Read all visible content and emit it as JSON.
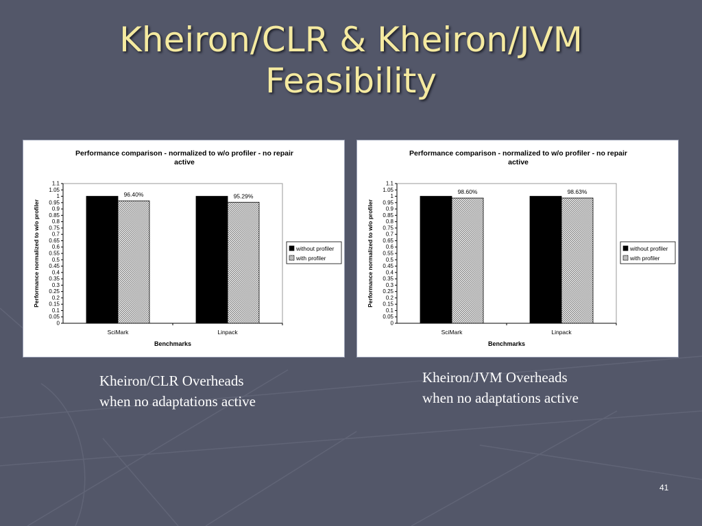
{
  "slide": {
    "title_line1": "Kheiron/CLR & Kheiron/JVM",
    "title_line2": "Feasibility",
    "page_number": "41"
  },
  "captions": {
    "left_line1": "Kheiron/CLR Overheads",
    "left_line2": "when no adaptations active",
    "right_line1": "Kheiron/JVM Overheads",
    "right_line2": "when no adaptations active"
  },
  "colors": {
    "background": "#535769",
    "title": "#f5eaa0",
    "series_without": "#000000",
    "series_with": "#d9d9d9"
  },
  "chart_data": [
    {
      "type": "bar",
      "title_line1": "Performance comparison - normalized to w/o profiler - no repair",
      "title_line2": "active",
      "xlabel": "Benchmarks",
      "ylabel": "Performance normalized to w/o profiler",
      "categories": [
        "SciMark",
        "Linpack"
      ],
      "series": [
        {
          "name": "without profiler",
          "values": [
            1.0,
            1.0
          ],
          "labels": [
            "",
            ""
          ]
        },
        {
          "name": "with profiler",
          "values": [
            0.964,
            0.9529
          ],
          "labels": [
            "96.40%",
            "95.29%"
          ]
        }
      ],
      "ylim": [
        0,
        1.1
      ],
      "ytick_step": 0.05,
      "yticks": [
        "0",
        "0.05",
        "0.1",
        "0.15",
        "0.2",
        "0.25",
        "0.3",
        "0.35",
        "0.4",
        "0.45",
        "0.5",
        "0.55",
        "0.6",
        "0.65",
        "0.7",
        "0.75",
        "0.8",
        "0.85",
        "0.9",
        "0.95",
        "1",
        "1.05",
        "1.1"
      ],
      "legend_position": "right",
      "grid": false
    },
    {
      "type": "bar",
      "title_line1": "Performance comparison - normalized to w/o profiler - no repair",
      "title_line2": "active",
      "xlabel": "Benchmarks",
      "ylabel": "Performance normalized to w/o profiler",
      "categories": [
        "SciMark",
        "Linpack"
      ],
      "series": [
        {
          "name": "without profiler",
          "values": [
            1.0,
            1.0
          ],
          "labels": [
            "",
            ""
          ]
        },
        {
          "name": "with profiler",
          "values": [
            0.986,
            0.9863
          ],
          "labels": [
            "98.60%",
            "98.63%"
          ]
        }
      ],
      "ylim": [
        0,
        1.1
      ],
      "ytick_step": 0.05,
      "yticks": [
        "0",
        "0.05",
        "0.1",
        "0.15",
        "0.2",
        "0.25",
        "0.3",
        "0.35",
        "0.4",
        "0.45",
        "0.5",
        "0.55",
        "0.6",
        "0.65",
        "0.7",
        "0.75",
        "0.8",
        "0.85",
        "0.9",
        "0.95",
        "1",
        "1.05",
        "1.1"
      ],
      "legend_position": "right",
      "grid": false
    }
  ]
}
